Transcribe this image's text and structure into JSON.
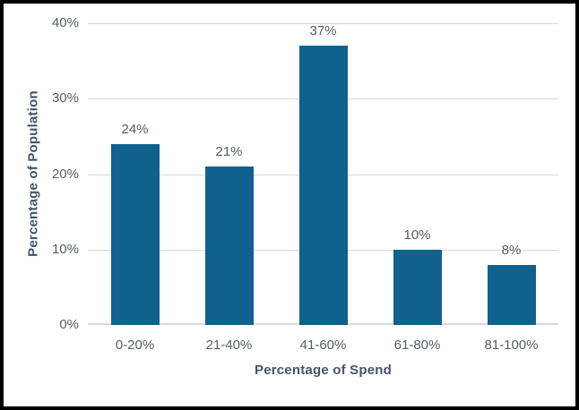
{
  "frame": {
    "background": "#ffffff",
    "border_color": "#000000"
  },
  "chart_data": {
    "type": "bar",
    "title": "",
    "categories": [
      "0-20%",
      "21-40%",
      "41-60%",
      "61-80%",
      "81-100%"
    ],
    "values": [
      24,
      21,
      37,
      10,
      8
    ],
    "data_labels": [
      "24%",
      "21%",
      "37%",
      "10%",
      "8%"
    ],
    "xlabel": "Percentage of Spend",
    "ylabel": "Percentage of Population",
    "ylim": [
      0,
      40
    ],
    "ytick_step": 10,
    "yticks": [
      "0%",
      "10%",
      "20%",
      "30%",
      "40%"
    ],
    "grid": "horizontal",
    "legend": "none",
    "bar_color": "#11618E",
    "gridline_color": "#D9D9D9",
    "tick_label_color": "#535C66",
    "data_label_color": "#535C66",
    "axis_title_color": "#44546A"
  }
}
